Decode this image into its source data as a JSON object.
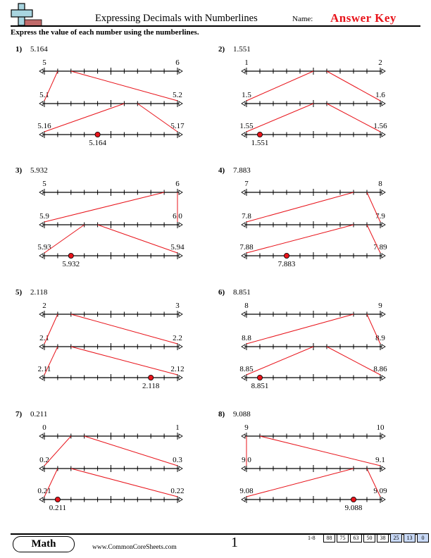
{
  "header": {
    "title": "Expressing Decimals with Numberlines",
    "name_label": "Name:",
    "answer_key": "Answer Key",
    "instructions": "Express the value of each number using the numberlines."
  },
  "colors": {
    "accent": "#e8141b",
    "logo_cross": "#a8d5e0",
    "logo_bar": "#c06a6a",
    "score_highlight": "#c9daf8"
  },
  "problems": [
    {
      "num": "1)",
      "value": "5.164",
      "top": [
        "5",
        "6"
      ],
      "mid": [
        "5.1",
        "5.2"
      ],
      "bot": [
        "5.16",
        "5.17"
      ],
      "answer": "5.164"
    },
    {
      "num": "2)",
      "value": "1.551",
      "top": [
        "1",
        "2"
      ],
      "mid": [
        "1.5",
        "1.6"
      ],
      "bot": [
        "1.55",
        "1.56"
      ],
      "answer": "1.551"
    },
    {
      "num": "3)",
      "value": "5.932",
      "top": [
        "5",
        "6"
      ],
      "mid": [
        "5.9",
        "6.0"
      ],
      "bot": [
        "5.93",
        "5.94"
      ],
      "answer": "5.932"
    },
    {
      "num": "4)",
      "value": "7.883",
      "top": [
        "7",
        "8"
      ],
      "mid": [
        "7.8",
        "7.9"
      ],
      "bot": [
        "7.88",
        "7.89"
      ],
      "answer": "7.883"
    },
    {
      "num": "5)",
      "value": "2.118",
      "top": [
        "2",
        "3"
      ],
      "mid": [
        "2.1",
        "2.2"
      ],
      "bot": [
        "2.11",
        "2.12"
      ],
      "answer": "2.118"
    },
    {
      "num": "6)",
      "value": "8.851",
      "top": [
        "8",
        "9"
      ],
      "mid": [
        "8.8",
        "8.9"
      ],
      "bot": [
        "8.85",
        "8.86"
      ],
      "answer": "8.851"
    },
    {
      "num": "7)",
      "value": "0.211",
      "top": [
        "0",
        "1"
      ],
      "mid": [
        "0.2",
        "0.3"
      ],
      "bot": [
        "0.21",
        "0.22"
      ],
      "answer": "0.211"
    },
    {
      "num": "8)",
      "value": "9.088",
      "top": [
        "9",
        "10"
      ],
      "mid": [
        "9.0",
        "9.1"
      ],
      "bot": [
        "9.08",
        "9.09"
      ],
      "answer": "9.088"
    }
  ],
  "footer": {
    "subject": "Math",
    "website": "www.CommonCoreSheets.com",
    "page": "1",
    "score_range": "1-8",
    "scores": [
      "88",
      "75",
      "63",
      "50",
      "38",
      "25",
      "13",
      "0"
    ]
  }
}
